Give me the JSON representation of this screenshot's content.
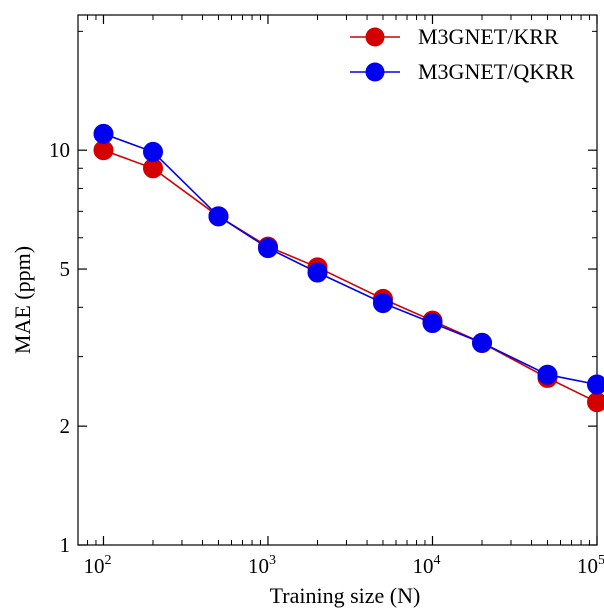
{
  "chart_data": {
    "type": "line",
    "title": "",
    "xlabel": "Training size (N)",
    "ylabel": "MAE (ppm)",
    "x_scale": "log",
    "y_scale": "log",
    "xlim": [
      70,
      100000
    ],
    "ylim": [
      1,
      22
    ],
    "x_ticks": [
      {
        "value": 100,
        "base": "10",
        "exp": "2"
      },
      {
        "value": 1000,
        "base": "10",
        "exp": "3"
      },
      {
        "value": 10000,
        "base": "10",
        "exp": "4"
      },
      {
        "value": 100000,
        "base": "10",
        "exp": "5"
      }
    ],
    "y_ticks": [
      {
        "value": 1,
        "label": "1"
      },
      {
        "value": 2,
        "label": "2"
      },
      {
        "value": 5,
        "label": "5"
      },
      {
        "value": 10,
        "label": "10"
      }
    ],
    "grid": false,
    "legend_position": "top-right",
    "series": [
      {
        "name": "M3GNET/KRR",
        "color": "#d40000",
        "x": [
          100,
          200,
          500,
          1000,
          2000,
          5000,
          10000,
          20000,
          50000,
          100000
        ],
        "values": [
          10.0,
          9.0,
          6.8,
          5.7,
          5.05,
          4.2,
          3.7,
          3.25,
          2.65,
          2.3
        ]
      },
      {
        "name": "M3GNET/QKRR",
        "color": "#0000f0",
        "x": [
          100,
          200,
          500,
          1000,
          2000,
          5000,
          10000,
          20000,
          50000,
          100000
        ],
        "values": [
          11.0,
          9.9,
          6.8,
          5.65,
          4.9,
          4.1,
          3.65,
          3.25,
          2.7,
          2.55
        ]
      }
    ]
  }
}
